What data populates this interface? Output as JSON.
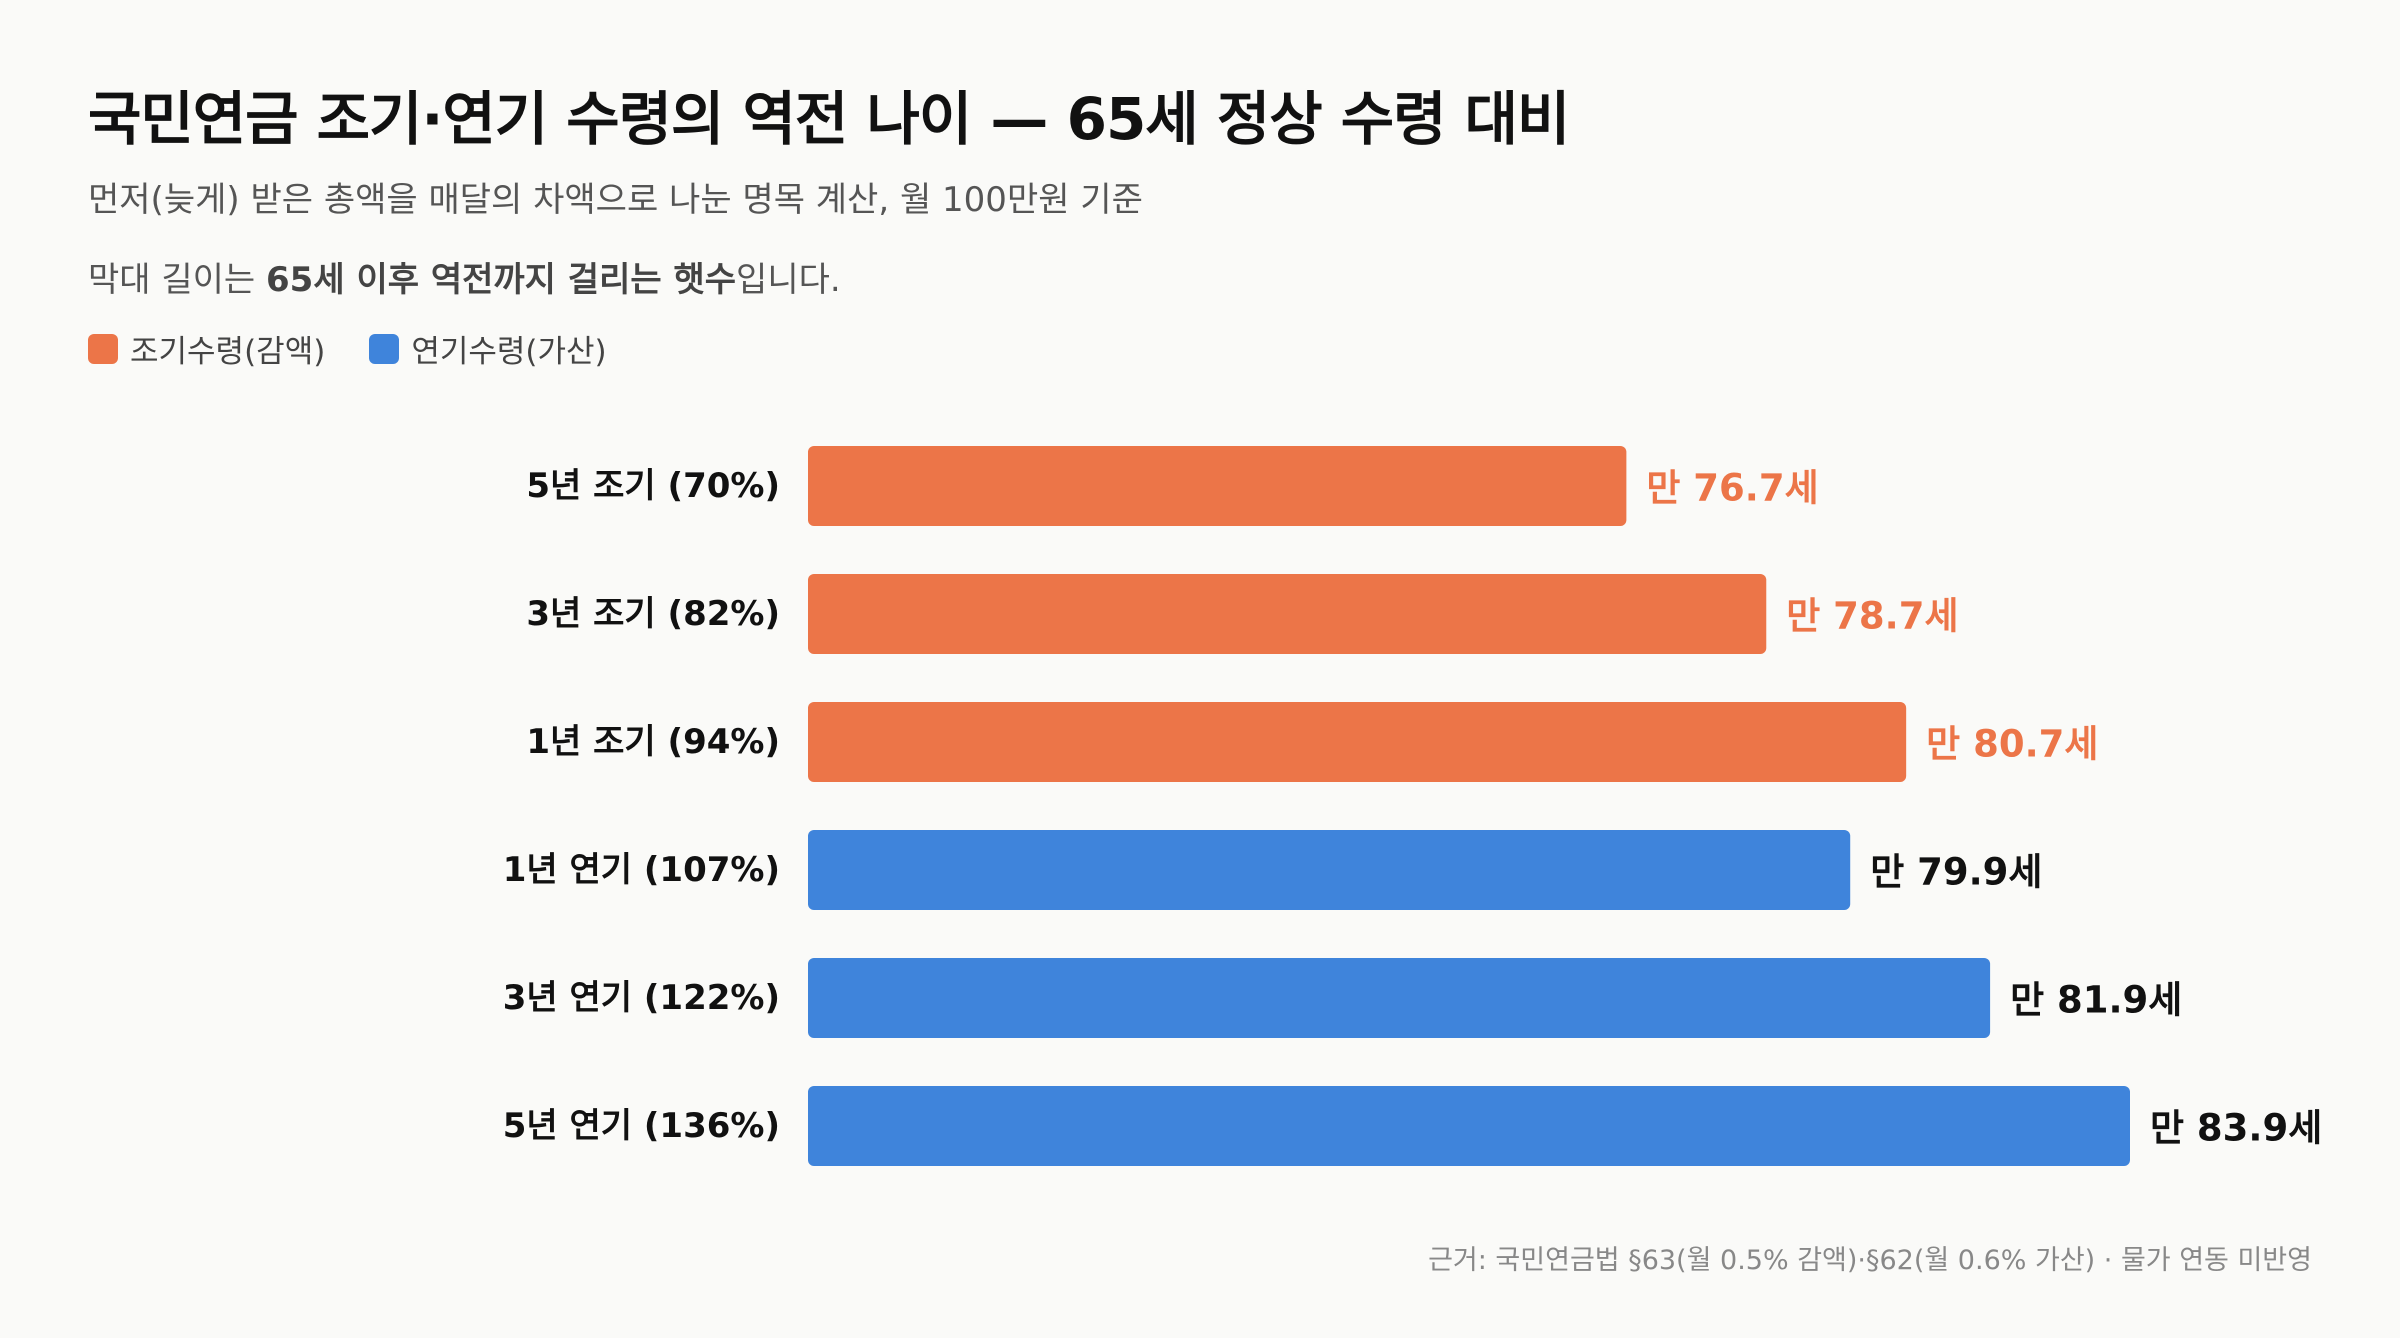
{
  "title": "국민연금 조기·연기 수령의 역전 나이 — 65세 정상 수령 대비",
  "subtitle": "먼저(늦게) 받은 총액을 매달의 차액으로 나눈 명목 계산, 월 100만원 기준",
  "note": {
    "prefix": "막대 길이는 ",
    "bold": "65세 이후 역전까지 걸리는 햇수",
    "suffix": "입니다."
  },
  "legend": [
    {
      "label": "조기수령(감액)",
      "color": "#ec7548"
    },
    {
      "label": "연기수령(가산)",
      "color": "#3f84db"
    }
  ],
  "source": "근거: 국민연금법 §63(월 0.5% 감액)·§62(월 0.6% 가산) · 물가 연동 미반영",
  "chart_data": {
    "type": "bar",
    "orientation": "horizontal",
    "categories": [
      "5년 조기 (70%)",
      "3년 조기 (82%)",
      "1년 조기 (94%)",
      "1년 연기 (107%)",
      "3년 연기 (122%)",
      "5년 연기 (136%)"
    ],
    "values": [
      11.7,
      13.7,
      15.7,
      14.9,
      16.9,
      18.9
    ],
    "value_labels": [
      "만 76.7세",
      "만 78.7세",
      "만 80.7세",
      "만 79.9세",
      "만 81.9세",
      "만 83.9세"
    ],
    "groups": [
      "조기수령(감액)",
      "조기수령(감액)",
      "조기수령(감액)",
      "연기수령(가산)",
      "연기수령(가산)",
      "연기수령(가산)"
    ],
    "bar_colors": [
      "#ec7548",
      "#ec7548",
      "#ec7548",
      "#3f84db",
      "#3f84db",
      "#3f84db"
    ],
    "label_colors": [
      "#ec7548",
      "#ec7548",
      "#ec7548",
      "#111111",
      "#111111",
      "#111111"
    ],
    "xlim": [
      0,
      18.9
    ],
    "grid": false,
    "legend_position": "top-left"
  }
}
